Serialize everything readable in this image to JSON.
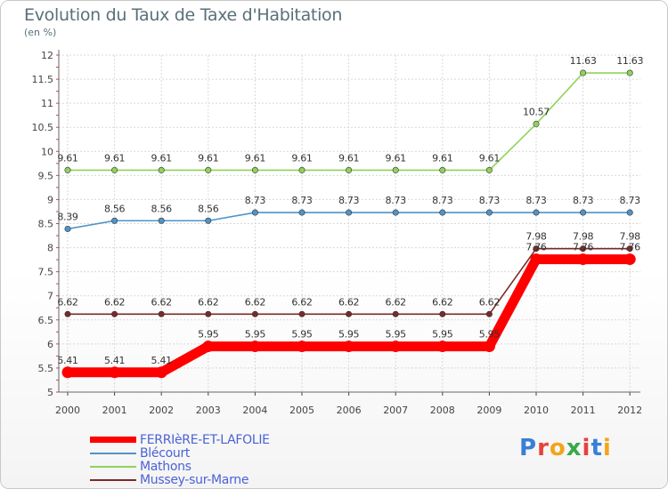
{
  "header": {
    "title": "Evolution du Taux de Taxe d'Habitation",
    "subtitle": "(en %)"
  },
  "logo": {
    "text": "Proxiti",
    "letters": [
      "P",
      "r",
      "o",
      "x",
      "i",
      "t",
      "i"
    ],
    "colors": [
      "#3a7fd6",
      "#e8423a",
      "#f2a51a",
      "#3aa84a",
      "#e8423a",
      "#3a7fd6",
      "#f2a51a"
    ]
  },
  "chart_data": {
    "type": "line",
    "title": "Evolution du Taux de Taxe d'Habitation",
    "subtitle": "(en %)",
    "xlabel": "",
    "ylabel": "",
    "x": [
      "2000",
      "2001",
      "2002",
      "2003",
      "2004",
      "2005",
      "2006",
      "2007",
      "2008",
      "2009",
      "2010",
      "2011",
      "2012"
    ],
    "ylim": [
      5,
      12
    ],
    "yticks": [
      "5",
      "5.5",
      "6",
      "6.5",
      "7",
      "7.5",
      "8",
      "8.5",
      "9",
      "9.5",
      "10",
      "10.5",
      "11",
      "11.5",
      "12"
    ],
    "grid": true,
    "legend_position": "bottom-left",
    "series": [
      {
        "name": "FERRIèRE-ET-LAFOLIE",
        "color": "#ff0000",
        "style": "thick",
        "values": [
          5.41,
          5.41,
          5.41,
          5.95,
          5.95,
          5.95,
          5.95,
          5.95,
          5.95,
          5.95,
          7.76,
          7.76,
          7.76
        ],
        "labels": [
          "5.41",
          "5.41",
          "5.41",
          "5.95",
          "5.95",
          "5.95",
          "5.95",
          "5.95",
          "5.95",
          "5.95",
          "7.76",
          "7.76",
          "7.76"
        ]
      },
      {
        "name": "Blécourt",
        "color": "#4f94c9",
        "style": "thin",
        "values": [
          8.39,
          8.56,
          8.56,
          8.56,
          8.73,
          8.73,
          8.73,
          8.73,
          8.73,
          8.73,
          8.73,
          8.73,
          8.73
        ],
        "labels": [
          "8.39",
          "8.56",
          "8.56",
          "8.56",
          "8.73",
          "8.73",
          "8.73",
          "8.73",
          "8.73",
          "8.73",
          "8.73",
          "8.73",
          "8.73"
        ]
      },
      {
        "name": "Mathons",
        "color": "#8fd35a",
        "style": "thin",
        "values": [
          9.61,
          9.61,
          9.61,
          9.61,
          9.61,
          9.61,
          9.61,
          9.61,
          9.61,
          9.61,
          10.57,
          11.63,
          11.63
        ],
        "labels": [
          "9.61",
          "9.61",
          "9.61",
          "9.61",
          "9.61",
          "9.61",
          "9.61",
          "9.61",
          "9.61",
          "9.61",
          "10.57",
          "11.63",
          "11.63"
        ]
      },
      {
        "name": "Mussey-sur-Marne",
        "color": "#7a2a2a",
        "style": "thin",
        "values": [
          6.62,
          6.62,
          6.62,
          6.62,
          6.62,
          6.62,
          6.62,
          6.62,
          6.62,
          6.62,
          7.98,
          7.98,
          7.98
        ],
        "labels": [
          "6.62",
          "6.62",
          "6.62",
          "6.62",
          "6.62",
          "6.62",
          "6.62",
          "6.62",
          "6.62",
          "6.62",
          "7.98",
          "7.98",
          "7.98"
        ]
      }
    ]
  }
}
